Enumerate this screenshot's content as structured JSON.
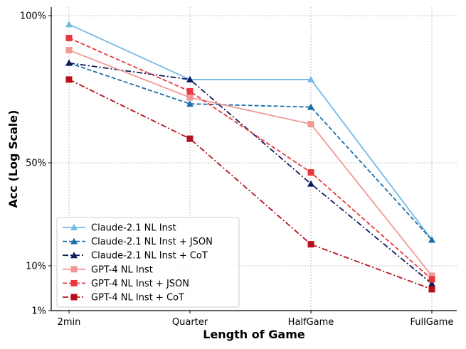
{
  "chart_data": {
    "type": "line",
    "xlabel": "Length of Game",
    "ylabel": "Acc (Log Scale)",
    "yscale": "log",
    "categories": [
      "2min",
      "Quarter",
      "HalfGame",
      "FullGame"
    ],
    "y_ticks": [
      {
        "value": 1,
        "label": "1%"
      },
      {
        "value": 10,
        "label": "10%"
      },
      {
        "value": 50,
        "label": "50%"
      },
      {
        "value": 100,
        "label": "100%"
      }
    ],
    "ylim": [
      1,
      100
    ],
    "grid": true,
    "legend_position": "lower-left",
    "series": [
      {
        "name": "Claude-2.1 NL Inst",
        "values": [
          96,
          74,
          74,
          15
        ],
        "color": "#74b9e7",
        "dash": "solid",
        "marker": "triangle"
      },
      {
        "name": "Claude-2.1 NL Inst + JSON",
        "values": [
          80,
          66,
          65,
          15
        ],
        "color": "#1a6faa",
        "dash": "dashed",
        "marker": "triangle"
      },
      {
        "name": "Claude-2.1 NL Inst + CoT",
        "values": [
          80,
          74,
          36,
          4
        ],
        "color": "#0d1a5c",
        "dash": "dashdot",
        "marker": "triangle"
      },
      {
        "name": "GPT-4 NL Inst",
        "values": [
          85,
          68,
          60,
          6
        ],
        "color": "#f19895",
        "dash": "solid",
        "marker": "square"
      },
      {
        "name": "GPT-4 NL Inst + JSON",
        "values": [
          90,
          70,
          43,
          5
        ],
        "color": "#e8383d",
        "dash": "dashed",
        "marker": "square"
      },
      {
        "name": "GPT-4 NL Inst + CoT",
        "values": [
          74,
          56,
          14,
          3
        ],
        "color": "#b5101c",
        "dash": "dashdot",
        "marker": "square"
      }
    ]
  }
}
